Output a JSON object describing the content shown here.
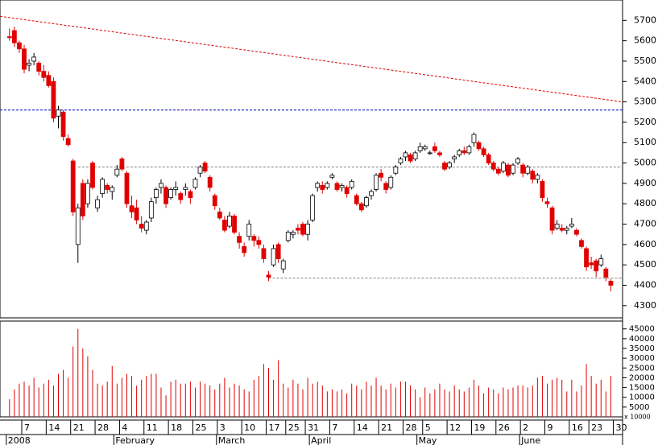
{
  "chart_data": {
    "type": "candlestick",
    "open": [
      5620,
      5650,
      5590,
      5560,
      5480,
      5500,
      5490,
      5450,
      5430,
      5400,
      5230,
      5250,
      5120,
      5010,
      4600,
      4900,
      4800,
      5000,
      4780,
      4850,
      4890,
      4860,
      4940,
      5020,
      4950,
      4790,
      4780,
      4700,
      4670,
      4730,
      4830,
      4880,
      4880,
      4830,
      4870,
      4850,
      4870,
      4860,
      4880,
      4950,
      5000,
      4930,
      4840,
      4760,
      4720,
      4690,
      4740,
      4640,
      4590,
      4640,
      4640,
      4620,
      4580,
      4450,
      4500,
      4600,
      4480,
      4620,
      4650,
      4680,
      4700,
      4650,
      4720,
      4880,
      4890,
      4880,
      4930,
      4900,
      4880,
      4880,
      4880,
      4840,
      4800,
      4790,
      4840,
      4870,
      4950,
      4900,
      4880,
      4950,
      5000,
      5030,
      5040,
      5020,
      5060,
      5070,
      5050,
      5080,
      5050,
      5000,
      4980,
      5020,
      5040,
      5060,
      5050,
      5100,
      5100,
      5070,
      5040,
      5000,
      4970,
      4960,
      4990,
      4950,
      5000,
      4990,
      4950,
      4960,
      4920,
      4910,
      4810,
      4780,
      4680,
      4680,
      4670,
      4690,
      4670,
      4620,
      4580,
      4510,
      4520,
      4500,
      4480,
      4420
    ],
    "high": [
      5660,
      5670,
      5600,
      5580,
      5510,
      5540,
      5500,
      5480,
      5450,
      5420,
      5280,
      5260,
      5140,
      5020,
      4800,
      4920,
      4920,
      5010,
      4840,
      4930,
      4900,
      4890,
      4990,
      5030,
      4960,
      4840,
      4820,
      4740,
      4720,
      4830,
      4880,
      4920,
      4890,
      4880,
      4910,
      4860,
      4900,
      4870,
      4930,
      4990,
      5010,
      4940,
      4850,
      4780,
      4740,
      4760,
      4750,
      4660,
      4610,
      4720,
      4650,
      4640,
      4600,
      4470,
      4600,
      4610,
      4530,
      4670,
      4670,
      4700,
      4710,
      4720,
      4850,
      4910,
      4910,
      4910,
      4950,
      4910,
      4900,
      4890,
      4920,
      4850,
      4810,
      4840,
      4870,
      4950,
      4970,
      4910,
      4940,
      4990,
      5030,
      5060,
      5050,
      5060,
      5100,
      5090,
      5060,
      5100,
      5060,
      5010,
      5010,
      5040,
      5070,
      5080,
      5090,
      5150,
      5110,
      5080,
      5050,
      5010,
      4980,
      5010,
      5000,
      5000,
      5030,
      5000,
      4990,
      4970,
      4950,
      4920,
      4830,
      4790,
      4720,
      4700,
      4690,
      4730,
      4680,
      4630,
      4590,
      4540,
      4530,
      4550,
      4490,
      4430
    ],
    "low": [
      5600,
      5570,
      5540,
      5440,
      5450,
      5480,
      5430,
      5400,
      5370,
      5200,
      5170,
      5110,
      5080,
      4740,
      4510,
      4720,
      4780,
      4870,
      4760,
      4830,
      4850,
      4820,
      4930,
      4960,
      4780,
      4730,
      4700,
      4660,
      4650,
      4710,
      4800,
      4850,
      4780,
      4820,
      4840,
      4800,
      4840,
      4800,
      4870,
      4930,
      4950,
      4860,
      4770,
      4720,
      4660,
      4680,
      4650,
      4580,
      4540,
      4620,
      4590,
      4580,
      4510,
      4420,
      4490,
      4510,
      4460,
      4610,
      4630,
      4650,
      4640,
      4620,
      4710,
      4860,
      4850,
      4870,
      4920,
      4860,
      4860,
      4830,
      4870,
      4790,
      4760,
      4780,
      4820,
      4860,
      4910,
      4850,
      4870,
      4940,
      4990,
      5010,
      5000,
      5010,
      5050,
      5060,
      5040,
      5050,
      5030,
      4960,
      4970,
      5000,
      5030,
      5040,
      5040,
      5080,
      5060,
      5030,
      4990,
      4960,
      4940,
      4950,
      4930,
      4940,
      4990,
      4930,
      4940,
      4900,
      4900,
      4810,
      4780,
      4650,
      4670,
      4660,
      4650,
      4680,
      4640,
      4580,
      4470,
      4480,
      4440,
      4490,
      4420,
      4370
    ],
    "close": [
      5615,
      5590,
      5560,
      5460,
      5490,
      5520,
      5450,
      5420,
      5380,
      5220,
      5260,
      5130,
      5090,
      4760,
      4780,
      4740,
      4900,
      4880,
      4820,
      4920,
      4870,
      4880,
      4970,
      4970,
      4800,
      4760,
      4720,
      4680,
      4710,
      4810,
      4870,
      4900,
      4800,
      4870,
      4880,
      4820,
      4880,
      4830,
      4920,
      4980,
      4960,
      4880,
      4790,
      4730,
      4670,
      4740,
      4660,
      4610,
      4560,
      4700,
      4620,
      4600,
      4530,
      4440,
      4580,
      4530,
      4520,
      4660,
      4660,
      4670,
      4650,
      4700,
      4840,
      4900,
      4870,
      4900,
      4940,
      4870,
      4890,
      4850,
      4910,
      4800,
      4770,
      4830,
      4860,
      4940,
      4930,
      4870,
      4930,
      4980,
      5020,
      5050,
      5010,
      5050,
      5080,
      5080,
      5050,
      5060,
      5040,
      4970,
      5000,
      5030,
      5060,
      5050,
      5080,
      5140,
      5070,
      5040,
      5000,
      4970,
      4950,
      5000,
      4940,
      4990,
      5020,
      4950,
      4980,
      4920,
      4940,
      4830,
      4800,
      4670,
      4700,
      4670,
      4680,
      4700,
      4650,
      4590,
      4490,
      4500,
      4470,
      4530,
      4440,
      4400
    ],
    "volume": [
      9000,
      14000,
      17000,
      18000,
      16000,
      20000,
      15000,
      17000,
      19000,
      16000,
      22000,
      24000,
      20000,
      36000,
      45000,
      35000,
      31000,
      24000,
      17000,
      16000,
      18000,
      26000,
      17000,
      20000,
      22000,
      21000,
      16000,
      19000,
      21000,
      22000,
      22000,
      15000,
      11000,
      18000,
      19000,
      17000,
      17000,
      18000,
      15000,
      18000,
      17000,
      16000,
      14000,
      17000,
      20000,
      15000,
      17000,
      16000,
      14000,
      13000,
      19000,
      21000,
      27000,
      25000,
      19000,
      29000,
      17000,
      15000,
      19000,
      17000,
      14000,
      20000,
      17000,
      18000,
      16000,
      13000,
      14000,
      13000,
      14000,
      12000,
      17000,
      16000,
      14000,
      18000,
      16000,
      20000,
      16000,
      14000,
      17000,
      15000,
      18000,
      18000,
      16000,
      14000,
      10000,
      15000,
      12000,
      14000,
      17000,
      14000,
      13000,
      16000,
      14000,
      13000,
      15000,
      19000,
      16000,
      12000,
      15000,
      14000,
      12000,
      15000,
      14000,
      15000,
      16000,
      16000,
      15000,
      16000,
      20000,
      21000,
      17000,
      19000,
      20000,
      19000,
      13000,
      19000,
      13000,
      16000,
      27000,
      21000,
      17000,
      19000,
      13000,
      21000
    ],
    "up_color": "#ffffff",
    "down_color": "#e00000",
    "volume_color": "#e00000",
    "ylim": [
      4240,
      5800
    ],
    "yticks": [
      4300,
      4400,
      4500,
      4600,
      4700,
      4800,
      4900,
      5000,
      5100,
      5200,
      5300,
      5400,
      5500,
      5600,
      5700
    ],
    "volume_ylim": [
      0,
      49000
    ],
    "volume_yticks": [
      5000,
      10000,
      15000,
      20000,
      25000,
      30000,
      35000,
      40000,
      45000
    ],
    "volume_unit_label": "x 10000",
    "xticks": [
      {
        "value": 3,
        "label": "7"
      },
      {
        "value": 8,
        "label": "14"
      },
      {
        "value": 13,
        "label": "21"
      },
      {
        "value": 18,
        "label": "28"
      },
      {
        "value": 23,
        "label": "4"
      },
      {
        "value": 28,
        "label": "11"
      },
      {
        "value": 33,
        "label": "18"
      },
      {
        "value": 38,
        "label": "25"
      },
      {
        "value": 43,
        "label": "3"
      },
      {
        "value": 48,
        "label": "10"
      },
      {
        "value": 53,
        "label": "17"
      },
      {
        "value": 57,
        "label": "25"
      },
      {
        "value": 61,
        "label": "31"
      },
      {
        "value": 66,
        "label": "7"
      },
      {
        "value": 71,
        "label": "14"
      },
      {
        "value": 76,
        "label": "21"
      },
      {
        "value": 81,
        "label": "28"
      },
      {
        "value": 85,
        "label": "5"
      },
      {
        "value": 90,
        "label": "12"
      },
      {
        "value": 95,
        "label": "19"
      },
      {
        "value": 100,
        "label": "26"
      },
      {
        "value": 105,
        "label": "2"
      },
      {
        "value": 110,
        "label": "9"
      },
      {
        "value": 115,
        "label": "16"
      },
      {
        "value": 119,
        "label": "23"
      },
      {
        "value": 124,
        "label": "30"
      }
    ],
    "month_labels": [
      {
        "value": 0,
        "label": "2008"
      },
      {
        "value": 22,
        "label": "February"
      },
      {
        "value": 43,
        "label": "March"
      },
      {
        "value": 62,
        "label": "April"
      },
      {
        "value": 84,
        "label": "May"
      },
      {
        "value": 105,
        "label": "June"
      }
    ],
    "trendline": {
      "values": [
        5720,
        5300
      ],
      "color": "#e00000"
    },
    "levels": [
      {
        "value": 5260,
        "start": -2,
        "color": "#0000c0"
      },
      {
        "value": 4980,
        "start": 14,
        "color": "#808080"
      },
      {
        "value": 4435,
        "start": 53,
        "color": "#808080"
      }
    ]
  }
}
